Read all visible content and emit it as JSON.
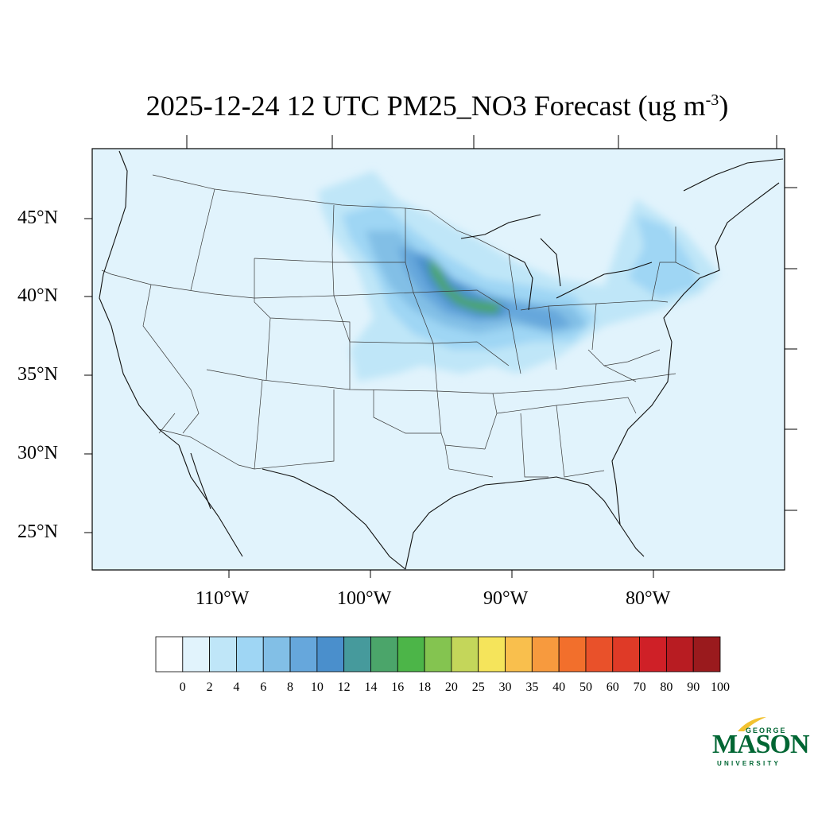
{
  "title": {
    "main": "2025-12-24 12 UTC PM25_NO3 Forecast (ug m",
    "sup": "-3",
    "end": ")"
  },
  "axes": {
    "lat_labels": [
      "45°N",
      "40°N",
      "35°N",
      "30°N",
      "25°N"
    ],
    "lon_labels": [
      "110°W",
      "100°W",
      "90°W",
      "80°W"
    ]
  },
  "colorbar": {
    "levels": [
      "0",
      "2",
      "4",
      "6",
      "8",
      "10",
      "12",
      "14",
      "16",
      "18",
      "20",
      "25",
      "30",
      "35",
      "40",
      "50",
      "60",
      "70",
      "80",
      "90",
      "100"
    ],
    "colors": [
      "#ffffff",
      "#e1f3fc",
      "#bfe6f8",
      "#9fd6f4",
      "#82bfe6",
      "#66a7dc",
      "#4a8fcc",
      "#469a9c",
      "#4ba56a",
      "#4cb548",
      "#84c450",
      "#c4d65a",
      "#f5e45b",
      "#f9bf4d",
      "#f79a3e",
      "#f26f2c",
      "#e9512a",
      "#df3a27",
      "#cf2027",
      "#b81c22",
      "#9a1a1d"
    ]
  },
  "logo": {
    "george": "GEORGE",
    "mason": "MASON",
    "university": "UNIVERSITY",
    "color": "#006633",
    "accent": "#f2c230"
  },
  "map": {
    "background": "#e1f3fc",
    "lines": "#3a3a3a"
  }
}
